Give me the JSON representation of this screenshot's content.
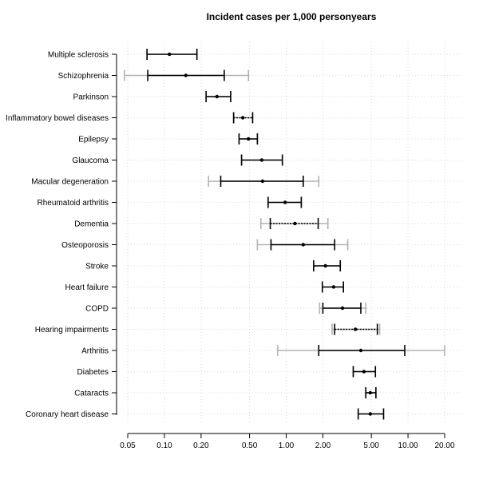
{
  "chart_data": {
    "type": "forest",
    "title": "Incident cases per 1,000 personyears",
    "xscale": "log",
    "xlim": [
      0.05,
      20
    ],
    "xticks": [
      0.05,
      0.1,
      0.2,
      0.5,
      1.0,
      2.0,
      5.0,
      10.0,
      20.0
    ],
    "xtick_labels": [
      "0.05",
      "0.10",
      "0.20",
      "0.50",
      "1.00",
      "2.00",
      "5.00",
      "10.00",
      "20.00"
    ],
    "grid": true,
    "colors": {
      "inner": "#000000",
      "outer": "#b3b3b3",
      "grid": "#d9d9d9"
    },
    "rows": [
      {
        "label": "Multiple sclerosis",
        "point": 0.11,
        "lo": 0.072,
        "hi": 0.185,
        "outer_lo": 0.072,
        "outer_hi": 0.185,
        "inner_style": "solid"
      },
      {
        "label": "Schizophrenia",
        "point": 0.15,
        "lo": 0.073,
        "hi": 0.31,
        "outer_lo": 0.047,
        "outer_hi": 0.49,
        "inner_style": "solid"
      },
      {
        "label": "Parkinson",
        "point": 0.27,
        "lo": 0.22,
        "hi": 0.35,
        "outer_lo": 0.22,
        "outer_hi": 0.35,
        "inner_style": "solid"
      },
      {
        "label": "Inflammatory bowel diseases",
        "point": 0.44,
        "lo": 0.37,
        "hi": 0.53,
        "outer_lo": 0.37,
        "outer_hi": 0.53,
        "inner_style": "dotted"
      },
      {
        "label": "Epilepsy",
        "point": 0.49,
        "lo": 0.41,
        "hi": 0.58,
        "outer_lo": 0.41,
        "outer_hi": 0.58,
        "inner_style": "solid"
      },
      {
        "label": "Glaucoma",
        "point": 0.63,
        "lo": 0.43,
        "hi": 0.93,
        "outer_lo": 0.43,
        "outer_hi": 0.93,
        "inner_style": "solid"
      },
      {
        "label": "Macular degeneration",
        "point": 0.64,
        "lo": 0.29,
        "hi": 1.38,
        "outer_lo": 0.23,
        "outer_hi": 1.85,
        "inner_style": "solid"
      },
      {
        "label": "Rheumatoid arthritis",
        "point": 0.98,
        "lo": 0.71,
        "hi": 1.33,
        "outer_lo": 0.71,
        "outer_hi": 1.33,
        "inner_style": "solid"
      },
      {
        "label": "Dementia",
        "point": 1.18,
        "lo": 0.74,
        "hi": 1.83,
        "outer_lo": 0.62,
        "outer_hi": 2.2,
        "inner_style": "dotted"
      },
      {
        "label": "Osteoporosis",
        "point": 1.38,
        "lo": 0.75,
        "hi": 2.5,
        "outer_lo": 0.58,
        "outer_hi": 3.2,
        "inner_style": "solid"
      },
      {
        "label": "Stroke",
        "point": 2.1,
        "lo": 1.68,
        "hi": 2.78,
        "outer_lo": 1.68,
        "outer_hi": 2.78,
        "inner_style": "solid"
      },
      {
        "label": "Heart failure",
        "point": 2.45,
        "lo": 1.98,
        "hi": 2.95,
        "outer_lo": 1.98,
        "outer_hi": 2.95,
        "inner_style": "solid"
      },
      {
        "label": "COPD",
        "point": 2.9,
        "lo": 2.0,
        "hi": 4.1,
        "outer_lo": 1.88,
        "outer_hi": 4.5,
        "inner_style": "solid"
      },
      {
        "label": "Hearing impairments",
        "point": 3.7,
        "lo": 2.5,
        "hi": 5.6,
        "outer_lo": 2.38,
        "outer_hi": 5.85,
        "inner_style": "dotted"
      },
      {
        "label": "Arthritis",
        "point": 4.1,
        "lo": 1.85,
        "hi": 9.4,
        "outer_lo": 0.85,
        "outer_hi": 20.0,
        "inner_style": "solid"
      },
      {
        "label": "Diabetes",
        "point": 4.35,
        "lo": 3.55,
        "hi": 5.4,
        "outer_lo": 3.55,
        "outer_hi": 5.4,
        "inner_style": "solid"
      },
      {
        "label": "Cataracts",
        "point": 4.9,
        "lo": 4.5,
        "hi": 5.45,
        "outer_lo": 4.5,
        "outer_hi": 5.45,
        "inner_style": "solid"
      },
      {
        "label": "Coronary heart disease",
        "point": 4.9,
        "lo": 3.9,
        "hi": 6.3,
        "outer_lo": 3.9,
        "outer_hi": 6.3,
        "inner_style": "solid"
      }
    ]
  }
}
